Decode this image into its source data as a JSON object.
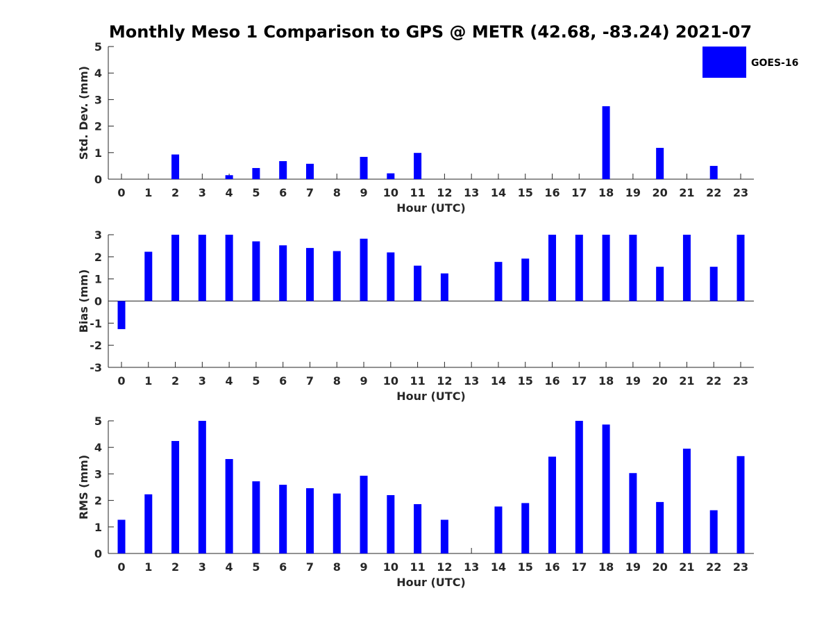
{
  "figure": {
    "title": "Monthly Meso 1 Comparison to GPS @ METR (42.68, -83.24) 2021-07",
    "legend": {
      "label": "GOES-16",
      "placement": "top-right"
    },
    "colors": {
      "bar": "#0000ff",
      "axis": "#262626"
    }
  },
  "chart_data": [
    {
      "type": "bar",
      "xlabel": "Hour (UTC)",
      "ylabel": "Std. Dev. (mm)",
      "ylim": [
        0,
        5
      ],
      "yticks": [
        0,
        1,
        2,
        3,
        4,
        5
      ],
      "categories": [
        "0",
        "1",
        "2",
        "3",
        "4",
        "5",
        "6",
        "7",
        "8",
        "9",
        "10",
        "11",
        "12",
        "13",
        "14",
        "15",
        "16",
        "17",
        "18",
        "19",
        "20",
        "21",
        "22",
        "23"
      ],
      "series": [
        {
          "name": "GOES-16",
          "values": [
            0,
            0,
            0.93,
            0,
            0.15,
            0.42,
            0.68,
            0.58,
            0,
            0.84,
            0.22,
            0.99,
            0,
            0,
            0,
            0,
            0,
            0,
            2.75,
            0,
            1.18,
            0,
            0.5,
            0
          ]
        }
      ],
      "grid": false
    },
    {
      "type": "bar",
      "xlabel": "Hour (UTC)",
      "ylabel": "Bias (mm)",
      "ylim": [
        -3,
        3
      ],
      "yticks": [
        -3,
        -2,
        -1,
        0,
        1,
        2,
        3
      ],
      "categories": [
        "0",
        "1",
        "2",
        "3",
        "4",
        "5",
        "6",
        "7",
        "8",
        "9",
        "10",
        "11",
        "12",
        "13",
        "14",
        "15",
        "16",
        "17",
        "18",
        "19",
        "20",
        "21",
        "22",
        "23"
      ],
      "series": [
        {
          "name": "GOES-16",
          "values": [
            -1.27,
            2.23,
            3,
            3,
            3,
            2.7,
            2.52,
            2.4,
            2.26,
            2.82,
            2.2,
            1.6,
            1.25,
            0,
            1.77,
            1.92,
            3,
            3,
            3,
            3,
            1.55,
            3,
            1.55,
            3
          ]
        }
      ],
      "grid": false
    },
    {
      "type": "bar",
      "xlabel": "Hour (UTC)",
      "ylabel": "RMS (mm)",
      "ylim": [
        0,
        5
      ],
      "yticks": [
        0,
        1,
        2,
        3,
        4,
        5
      ],
      "categories": [
        "0",
        "1",
        "2",
        "3",
        "4",
        "5",
        "6",
        "7",
        "8",
        "9",
        "10",
        "11",
        "12",
        "13",
        "14",
        "15",
        "16",
        "17",
        "18",
        "19",
        "20",
        "21",
        "22",
        "23"
      ],
      "series": [
        {
          "name": "GOES-16",
          "values": [
            1.27,
            2.23,
            4.24,
            5,
            3.56,
            2.72,
            2.59,
            2.46,
            2.26,
            2.93,
            2.2,
            1.86,
            1.27,
            0,
            1.77,
            1.9,
            3.65,
            5,
            4.86,
            3.03,
            1.94,
            3.95,
            1.63,
            3.67
          ]
        }
      ],
      "grid": false
    }
  ]
}
